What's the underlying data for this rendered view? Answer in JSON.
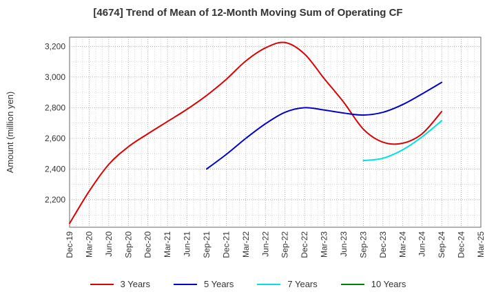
{
  "chart_data": {
    "type": "line",
    "title": "[4674]  Trend of Mean of 12-Month Moving Sum of Operating CF",
    "xlabel": "",
    "ylabel": "Amount (million yen)",
    "ylim": [
      2020,
      3260
    ],
    "yticks": [
      2200,
      2400,
      2600,
      2800,
      3000,
      3200
    ],
    "ytick_labels": [
      "2,200",
      "2,400",
      "2,600",
      "2,800",
      "3,000",
      "3,200"
    ],
    "xtick_labels": [
      "Dec-19",
      "Mar-20",
      "Jun-20",
      "Sep-20",
      "Dec-20",
      "Mar-21",
      "Jun-21",
      "Sep-21",
      "Dec-21",
      "Mar-22",
      "Jun-22",
      "Sep-22",
      "Dec-22",
      "Mar-23",
      "Jun-23",
      "Sep-23",
      "Dec-23",
      "Mar-24",
      "Jun-24",
      "Sep-24",
      "Dec-24",
      "Mar-25"
    ],
    "xlim_index": [
      0,
      21
    ],
    "grid": true,
    "legend_position": "bottom",
    "series": [
      {
        "name": "3 Years",
        "color": "#dd0000",
        "x": [
          0,
          1,
          2,
          3,
          4,
          5,
          6,
          7,
          8,
          9,
          10,
          11,
          12,
          13,
          14,
          15,
          16,
          17,
          18,
          19
        ],
        "values": [
          2045,
          2255,
          2430,
          2545,
          2630,
          2710,
          2790,
          2880,
          2985,
          3105,
          3190,
          3225,
          3150,
          2990,
          2835,
          2660,
          2575,
          2568,
          2630,
          2775
        ]
      },
      {
        "name": "5 Years",
        "color": "#0000cc",
        "x": [
          7,
          8,
          9,
          10,
          11,
          12,
          13,
          14,
          15,
          16,
          17,
          18,
          19
        ],
        "values": [
          2400,
          2495,
          2600,
          2695,
          2770,
          2800,
          2785,
          2765,
          2752,
          2770,
          2820,
          2890,
          2965
        ]
      },
      {
        "name": "7 Years",
        "color": "#00e0e0",
        "x": [
          15,
          16,
          17,
          18,
          19
        ],
        "values": [
          2455,
          2470,
          2525,
          2610,
          2715
        ]
      },
      {
        "name": "10 Years",
        "color": "#008000",
        "x": [],
        "values": []
      }
    ]
  }
}
